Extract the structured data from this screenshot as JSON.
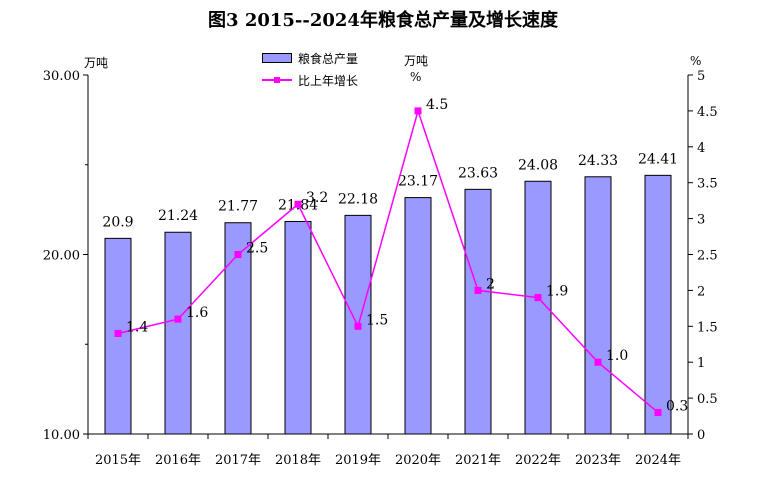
{
  "title": "图3  2015--2024年粮食总产量及增长速度",
  "left_unit": "万吨",
  "right_unit": "%",
  "annotation_unit_top": "万吨",
  "annotation_unit_bottom": "%",
  "colors": {
    "bar": "#9999ff",
    "line": "#ff00ff"
  },
  "chart_data": {
    "type": "bar",
    "categories": [
      "2015年",
      "2016年",
      "2017年",
      "2018年",
      "2019年",
      "2020年",
      "2021年",
      "2022年",
      "2023年",
      "2024年"
    ],
    "series": [
      {
        "name": "粮食总产量",
        "type": "bar",
        "axis": "left",
        "values": [
          20.9,
          21.24,
          21.77,
          21.84,
          22.18,
          23.17,
          23.63,
          24.08,
          24.33,
          24.41
        ],
        "labels": [
          "20.9",
          "21.24",
          "21.77",
          "21.84",
          "22.18",
          "23.17",
          "23.63",
          "24.08",
          "24.33",
          "24.41"
        ]
      },
      {
        "name": "比上年增长",
        "type": "line",
        "axis": "right",
        "values": [
          1.4,
          1.6,
          2.5,
          3.2,
          1.5,
          4.5,
          2,
          1.9,
          1.0,
          0.3
        ],
        "labels": [
          "1.4",
          "1.6",
          "2.5",
          "3.2",
          "1.5",
          "4.5",
          "2",
          "1.9",
          "1.0",
          "0.3"
        ]
      }
    ],
    "ylim_left": [
      10,
      30
    ],
    "yticks_left": [
      "10.00",
      "20.00",
      "30.00"
    ],
    "ylim_right": [
      0,
      5
    ],
    "yticks_right": [
      "0",
      "0.5",
      "1",
      "1.5",
      "2",
      "2.5",
      "3",
      "3.5",
      "4",
      "4.5",
      "5"
    ],
    "legend_position": "top-center",
    "grid": false
  }
}
